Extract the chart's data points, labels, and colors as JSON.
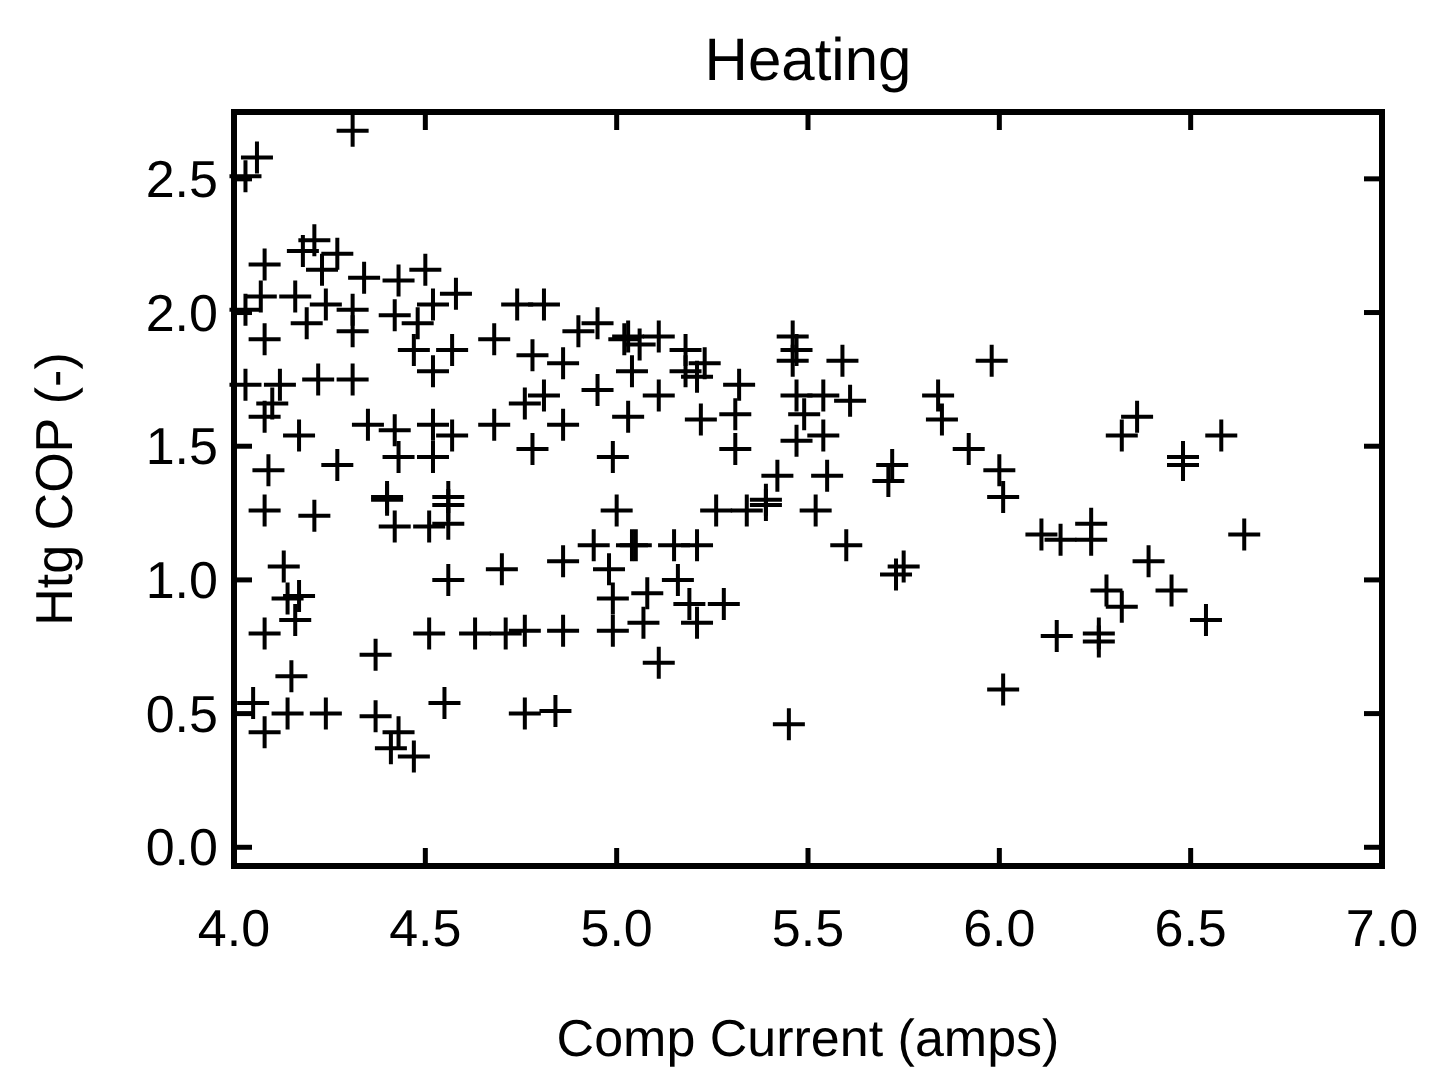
{
  "chart_data": {
    "type": "scatter",
    "title": "Heating",
    "xlabel": "Comp Current (amps)",
    "ylabel": "Htg COP (-)",
    "xlim": [
      4,
      7
    ],
    "ylim": [
      -0.07,
      2.75
    ],
    "xticks": [
      {
        "value": 4,
        "label": "4.0"
      },
      {
        "value": 4.5,
        "label": "4.5"
      },
      {
        "value": 5,
        "label": "5.0"
      },
      {
        "value": 5.5,
        "label": "5.5"
      },
      {
        "value": 6,
        "label": "6.0"
      },
      {
        "value": 6.5,
        "label": "6.5"
      },
      {
        "value": 7,
        "label": "7.0"
      }
    ],
    "yticks": [
      {
        "value": 0,
        "label": "0.0"
      },
      {
        "value": 0.5,
        "label": "0.5"
      },
      {
        "value": 1,
        "label": "1.0"
      },
      {
        "value": 1.5,
        "label": "1.5"
      },
      {
        "value": 2,
        "label": "2.0"
      },
      {
        "value": 2.5,
        "label": "2.5"
      }
    ],
    "grid": false,
    "marker": "cross",
    "series": [
      {
        "color": "#000000",
        "x": [
          4.03,
          4.06,
          4.31,
          4.08,
          4.18,
          4.21,
          4.27,
          4.23,
          4.34,
          4.43,
          4.5,
          4.07,
          4.03,
          4.16,
          4.24,
          4.31,
          4.42,
          4.52,
          4.58,
          4.74,
          4.81,
          4.9,
          4.95,
          5.02,
          4.08,
          4.19,
          4.31,
          4.48,
          4.68,
          4.78,
          4.86,
          4.47,
          4.52,
          4.57,
          4.03,
          4.12,
          4.22,
          4.31,
          4.1,
          4.08,
          4.17,
          4.35,
          4.42,
          4.52,
          4.57,
          4.43,
          4.52,
          4.27,
          4.09,
          4.68,
          4.76,
          4.81,
          4.86,
          4.78,
          4.95,
          4.99,
          4.4,
          4.56,
          5.03,
          5.06,
          5.11,
          5.18,
          5.21,
          5.23,
          5.18,
          5.04,
          5.46,
          5.47,
          5.46,
          5.59,
          5.98,
          5.32,
          5.31,
          5.47,
          5.54,
          5.61,
          5.49,
          5.54,
          5.47,
          5.31,
          5.22,
          5.11,
          5.03,
          5.84,
          5.85,
          5.92,
          6.0,
          5.72,
          5.71,
          5.42,
          5.55,
          6.01,
          5.39,
          6.36,
          6.32,
          6.48,
          6.48,
          6.58,
          4.08,
          4.21,
          4.4,
          4.42,
          4.51,
          4.56,
          4.56,
          4.13,
          4.17,
          4.14,
          4.16,
          4.08,
          4.15,
          4.05,
          4.14,
          4.24,
          4.08,
          4.37,
          4.43,
          4.41,
          4.47,
          4.37,
          4.56,
          4.51,
          4.63,
          4.71,
          4.76,
          4.86,
          4.99,
          4.7,
          4.86,
          4.94,
          4.98,
          4.99,
          5.0,
          5.04,
          4.55,
          4.76,
          4.84,
          5.05,
          5.15,
          5.21,
          5.26,
          5.34,
          5.39,
          5.52,
          5.6,
          5.73,
          5.75,
          5.08,
          5.16,
          5.19,
          5.28,
          5.07,
          5.21,
          5.11,
          5.45,
          6.01,
          6.11,
          6.16,
          6.24,
          6.24,
          6.64,
          6.39,
          6.28,
          6.32,
          6.45,
          6.54,
          6.15,
          6.26,
          6.26
        ],
        "values": [
          2.51,
          2.58,
          2.68,
          2.18,
          2.23,
          2.27,
          2.22,
          2.16,
          2.13,
          2.12,
          2.16,
          2.06,
          2.01,
          2.06,
          2.03,
          2.01,
          1.99,
          2.03,
          2.07,
          2.03,
          2.03,
          1.93,
          1.96,
          1.9,
          1.9,
          1.96,
          1.93,
          1.96,
          1.9,
          1.84,
          1.81,
          1.86,
          1.78,
          1.86,
          1.73,
          1.73,
          1.75,
          1.75,
          1.66,
          1.61,
          1.54,
          1.58,
          1.56,
          1.58,
          1.54,
          1.46,
          1.46,
          1.43,
          1.41,
          1.58,
          1.66,
          1.69,
          1.58,
          1.49,
          1.71,
          1.46,
          1.31,
          1.31,
          1.91,
          1.88,
          1.91,
          1.86,
          1.76,
          1.81,
          1.78,
          1.78,
          1.91,
          1.86,
          1.82,
          1.82,
          1.82,
          1.73,
          1.62,
          1.69,
          1.69,
          1.67,
          1.62,
          1.54,
          1.52,
          1.49,
          1.6,
          1.69,
          1.61,
          1.69,
          1.6,
          1.49,
          1.41,
          1.43,
          1.37,
          1.39,
          1.39,
          1.31,
          1.3,
          1.61,
          1.54,
          1.46,
          1.43,
          1.54,
          1.26,
          1.24,
          1.3,
          1.2,
          1.2,
          1.28,
          1.21,
          1.05,
          0.94,
          0.93,
          0.85,
          0.8,
          0.64,
          0.54,
          0.5,
          0.5,
          0.43,
          0.49,
          0.43,
          0.37,
          0.34,
          0.72,
          1.0,
          0.8,
          0.8,
          0.8,
          0.81,
          0.81,
          0.81,
          1.04,
          1.07,
          1.13,
          1.04,
          0.93,
          1.26,
          1.13,
          0.54,
          0.5,
          0.51,
          1.13,
          1.13,
          1.13,
          1.26,
          1.26,
          1.28,
          1.26,
          1.13,
          1.02,
          1.05,
          0.95,
          1.0,
          0.91,
          0.91,
          0.84,
          0.84,
          0.69,
          0.46,
          0.59,
          1.17,
          1.15,
          1.21,
          1.15,
          1.17,
          1.07,
          0.96,
          0.9,
          0.96,
          0.85,
          0.79,
          0.8,
          0.77
        ]
      }
    ]
  }
}
